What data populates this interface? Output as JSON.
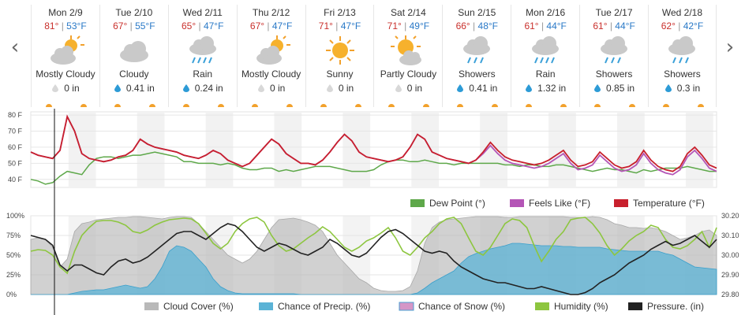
{
  "nav": {
    "prev": "‹",
    "next": "›"
  },
  "days": [
    {
      "date": "Mon 2/9",
      "hi": "81°",
      "lo": "53°F",
      "cond": "Mostly Cloudy",
      "icon": "partly-cloudy-icon",
      "precip": "0 in",
      "wet": false
    },
    {
      "date": "Tue 2/10",
      "hi": "67°",
      "lo": "55°F",
      "cond": "Cloudy",
      "icon": "cloud-icon",
      "precip": "0.41 in",
      "wet": true
    },
    {
      "date": "Wed 2/11",
      "hi": "65°",
      "lo": "47°F",
      "cond": "Rain",
      "icon": "rain-icon",
      "precip": "0.24 in",
      "wet": true
    },
    {
      "date": "Thu 2/12",
      "hi": "67°",
      "lo": "47°F",
      "cond": "Mostly Cloudy",
      "icon": "partly-cloudy-icon",
      "precip": "0 in",
      "wet": false
    },
    {
      "date": "Fri 2/13",
      "hi": "71°",
      "lo": "47°F",
      "cond": "Sunny",
      "icon": "sun-icon",
      "precip": "0 in",
      "wet": false
    },
    {
      "date": "Sat 2/14",
      "hi": "71°",
      "lo": "49°F",
      "cond": "Partly Cloudy",
      "icon": "partly-sunny-icon",
      "precip": "0 in",
      "wet": false
    },
    {
      "date": "Sun 2/15",
      "hi": "66°",
      "lo": "48°F",
      "cond": "Showers",
      "icon": "showers-icon",
      "precip": "0.41 in",
      "wet": true
    },
    {
      "date": "Mon 2/16",
      "hi": "61°",
      "lo": "44°F",
      "cond": "Rain",
      "icon": "rain-icon",
      "precip": "1.32 in",
      "wet": true
    },
    {
      "date": "Tue 2/17",
      "hi": "61°",
      "lo": "44°F",
      "cond": "Showers",
      "icon": "showers-icon",
      "precip": "0.85 in",
      "wet": true
    },
    {
      "date": "Wed 2/18",
      "hi": "62°",
      "lo": "42°F",
      "cond": "Showers",
      "icon": "showers-icon",
      "precip": "0.3 in",
      "wet": true
    }
  ],
  "colors": {
    "temperature": "#c8202d",
    "feels_like": "#b455b6",
    "dew_point": "#5ea84a",
    "cloud_cover": "#b9b9b9",
    "precip_chance": "#5bb3d6",
    "snow_chance": "#d596c7",
    "humidity": "#8dc63f",
    "pressure": "#222222"
  },
  "chart_data": [
    {
      "type": "line",
      "yticks": [
        "80 F",
        "70 F",
        "60 F",
        "50 F",
        "40 F"
      ],
      "ylim": [
        35,
        82
      ],
      "legend": [
        "Dew Point (°)",
        "Feels Like (°F)",
        "Temperature (°F)"
      ],
      "series": [
        {
          "name": "Temperature (°F)",
          "values": [
            57,
            55,
            54,
            53,
            58,
            79,
            70,
            56,
            53,
            52,
            51,
            52,
            54,
            55,
            58,
            65,
            62,
            60,
            59,
            58,
            57,
            55,
            54,
            53,
            55,
            58,
            56,
            52,
            50,
            48,
            50,
            55,
            60,
            65,
            62,
            56,
            53,
            50,
            50,
            49,
            52,
            57,
            63,
            68,
            64,
            57,
            54,
            53,
            52,
            51,
            52,
            54,
            60,
            68,
            65,
            57,
            55,
            53,
            52,
            51,
            50,
            52,
            57,
            63,
            58,
            54,
            52,
            51,
            50,
            49,
            50,
            52,
            55,
            58,
            52,
            48,
            49,
            51,
            57,
            53,
            49,
            47,
            48,
            51,
            58,
            52,
            48,
            46,
            45,
            48,
            56,
            60,
            55,
            49,
            47
          ]
        },
        {
          "name": "Feels Like (°F)",
          "values": [
            57,
            55,
            54,
            53,
            58,
            79,
            70,
            56,
            53,
            52,
            51,
            52,
            54,
            55,
            58,
            65,
            62,
            60,
            59,
            58,
            57,
            55,
            54,
            53,
            55,
            58,
            56,
            52,
            50,
            48,
            50,
            55,
            60,
            65,
            62,
            56,
            53,
            50,
            50,
            49,
            52,
            57,
            63,
            68,
            64,
            57,
            54,
            53,
            52,
            51,
            52,
            54,
            60,
            68,
            65,
            57,
            55,
            53,
            52,
            51,
            50,
            52,
            56,
            61,
            56,
            52,
            50,
            49,
            48,
            47,
            48,
            50,
            53,
            56,
            50,
            46,
            47,
            49,
            55,
            51,
            47,
            45,
            46,
            49,
            56,
            50,
            46,
            44,
            43,
            46,
            54,
            58,
            53,
            47,
            45
          ]
        },
        {
          "name": "Dew Point (°)",
          "values": [
            40,
            39,
            37,
            38,
            42,
            45,
            44,
            43,
            49,
            53,
            54,
            54,
            53,
            54,
            55,
            55,
            56,
            57,
            56,
            55,
            54,
            51,
            51,
            50,
            50,
            50,
            49,
            50,
            49,
            47,
            46,
            46,
            47,
            47,
            45,
            46,
            45,
            46,
            47,
            48,
            48,
            48,
            47,
            46,
            45,
            45,
            45,
            46,
            49,
            51,
            52,
            52,
            51,
            51,
            52,
            51,
            50,
            50,
            49,
            50,
            50,
            50,
            50,
            50,
            50,
            49,
            49,
            48,
            49,
            49,
            48,
            48,
            49,
            49,
            48,
            47,
            46,
            45,
            46,
            47,
            46,
            46,
            45,
            44,
            46,
            45,
            46,
            47,
            47,
            47,
            48,
            47,
            46,
            45,
            45
          ]
        }
      ]
    },
    {
      "type": "area",
      "yticks_left": [
        "100%",
        "75%",
        "50%",
        "25%",
        "0%"
      ],
      "yticks_right": [
        "30.20",
        "30.10",
        "30.00",
        "29.90",
        "29.80"
      ],
      "ylim_left": [
        0,
        100
      ],
      "ylim_right": [
        29.8,
        30.2
      ],
      "legend": [
        "Cloud Cover (%)",
        "Chance of Precip. (%)",
        "Chance of Snow (%)",
        "Humidity (%)",
        "Pressure. (in)"
      ],
      "series": [
        {
          "name": "Cloud Cover (%)",
          "values": [
            70,
            72,
            70,
            60,
            35,
            45,
            80,
            90,
            92,
            95,
            96,
            97,
            98,
            98,
            99,
            99,
            98,
            97,
            96,
            98,
            99,
            99,
            98,
            90,
            80,
            70,
            60,
            50,
            45,
            40,
            45,
            55,
            70,
            85,
            95,
            96,
            97,
            95,
            92,
            88,
            80,
            65,
            50,
            40,
            30,
            20,
            15,
            8,
            5,
            4,
            4,
            5,
            10,
            30,
            65,
            85,
            92,
            95,
            96,
            97,
            98,
            99,
            99,
            99,
            99,
            98,
            98,
            99,
            99,
            99,
            99,
            99,
            99,
            99,
            98,
            98,
            98,
            99,
            98,
            95,
            90,
            88,
            85,
            85,
            84,
            85,
            83,
            80,
            75,
            70,
            72,
            75,
            80,
            82,
            75
          ]
        },
        {
          "name": "Chance of Precip. (%)",
          "values": [
            0,
            0,
            0,
            0,
            0,
            0,
            2,
            4,
            5,
            6,
            6,
            8,
            10,
            12,
            10,
            8,
            10,
            20,
            35,
            55,
            62,
            60,
            55,
            45,
            35,
            20,
            10,
            5,
            2,
            1,
            1,
            1,
            1,
            1,
            1,
            1,
            1,
            0,
            0,
            0,
            0,
            0,
            0,
            0,
            0,
            0,
            0,
            0,
            0,
            0,
            0,
            0,
            0,
            2,
            8,
            15,
            20,
            25,
            30,
            40,
            48,
            52,
            55,
            58,
            60,
            62,
            65,
            65,
            64,
            63,
            62,
            62,
            62,
            61,
            61,
            60,
            60,
            60,
            60,
            58,
            57,
            56,
            55,
            55,
            55,
            55,
            55,
            52,
            50,
            45,
            40,
            35,
            34,
            33,
            32
          ]
        },
        {
          "name": "Humidity (%)",
          "values": [
            55,
            57,
            56,
            50,
            35,
            27,
            55,
            75,
            85,
            93,
            94,
            94,
            92,
            88,
            80,
            78,
            82,
            88,
            92,
            95,
            96,
            97,
            96,
            90,
            78,
            65,
            58,
            65,
            80,
            90,
            96,
            98,
            92,
            75,
            62,
            55,
            58,
            65,
            72,
            78,
            86,
            80,
            70,
            60,
            55,
            60,
            68,
            72,
            78,
            85,
            72,
            55,
            50,
            60,
            72,
            80,
            90,
            96,
            98,
            90,
            72,
            55,
            50,
            60,
            75,
            90,
            96,
            94,
            85,
            62,
            42,
            55,
            70,
            80,
            95,
            97,
            98,
            90,
            78,
            62,
            50,
            58,
            68,
            75,
            80,
            88,
            85,
            70,
            60,
            58,
            62,
            70,
            80,
            60,
            85
          ]
        },
        {
          "name": "Pressure. (in)",
          "values": [
            30.1,
            30.09,
            30.08,
            30.05,
            29.95,
            29.92,
            29.95,
            29.95,
            29.93,
            29.91,
            29.9,
            29.94,
            29.97,
            29.98,
            29.96,
            29.97,
            29.99,
            30.02,
            30.05,
            30.08,
            30.11,
            30.12,
            30.12,
            30.1,
            30.08,
            30.11,
            30.14,
            30.16,
            30.15,
            30.12,
            30.08,
            30.04,
            30.02,
            30.04,
            30.06,
            30.05,
            30.03,
            30.01,
            30.0,
            30.02,
            30.04,
            30.08,
            30.06,
            30.03,
            30.0,
            29.99,
            30.01,
            30.05,
            30.09,
            30.12,
            30.13,
            30.11,
            30.08,
            30.05,
            30.02,
            30.01,
            30.02,
            30.01,
            29.97,
            29.94,
            29.92,
            29.9,
            29.88,
            29.87,
            29.86,
            29.86,
            29.85,
            29.84,
            29.83,
            29.83,
            29.84,
            29.83,
            29.82,
            29.81,
            29.8,
            29.8,
            29.81,
            29.83,
            29.86,
            29.88,
            29.9,
            29.93,
            29.96,
            29.98,
            30.0,
            30.03,
            30.05,
            30.07,
            30.05,
            30.06,
            30.08,
            30.1,
            30.07,
            30.04,
            30.08
          ]
        }
      ]
    }
  ]
}
